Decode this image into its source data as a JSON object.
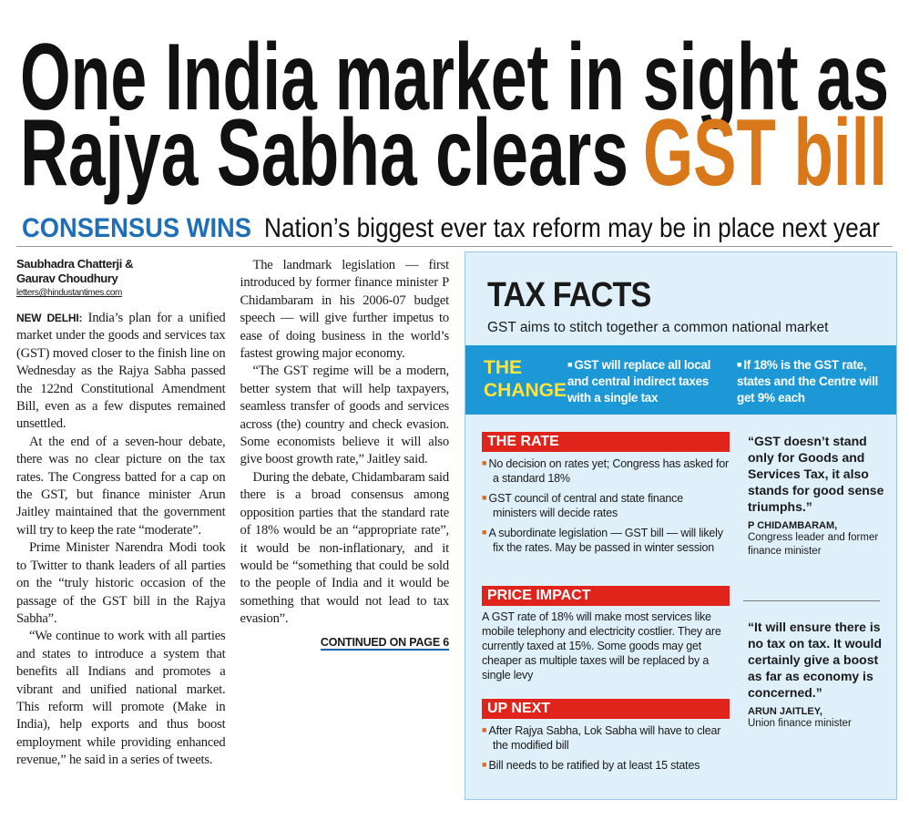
{
  "headline": {
    "line1": "One India market in sight as",
    "line2": "Rajya Sabha clears",
    "highlight": "GST bill"
  },
  "subhead": {
    "label": "CONSENSUS WINS",
    "text": "Nation’s biggest ever tax reform may be in place next year"
  },
  "byline": {
    "authors": [
      "Saubhadra Chatterji &",
      "Gaurav Choudhury"
    ],
    "email": "letters@hindustantimes.com"
  },
  "article": {
    "dateline": "NEW DELHI:",
    "paragraphs": [
      "India’s plan for a unified market under the goods and services tax (GST) moved closer to the finish line on Wednesday as the Rajya Sabha passed the 122nd Constitutional Amendment Bill, even as a few disputes remained unsettled.",
      "At the end of a seven-hour debate, there was no clear picture on the tax rates. The Congress batted for a cap on the GST, but finance minister Arun Jaitley maintained that the government will try to keep the rate “moderate”.",
      "Prime Minister Narendra Modi took to Twitter to thank leaders of all parties on the “truly historic occasion of the passage of the GST bill in the Rajya Sabha”.",
      "“We continue to work with all parties and states to introduce a system that benefits all Indians and promotes a vibrant and unified national market. This reform will promote (Make in India), help exports and thus boost employment while providing enhanced revenue,” he said in a series of tweets.",
      "The landmark legislation — first introduced by former finance minister P Chidambaram in his 2006-07 budget speech — will give further impetus to ease of doing business in the world’s fastest growing major economy.",
      "“The GST regime will be a modern, better system that will help taxpayers, seamless transfer of goods and services across (the) country and check evasion. Some economists believe it will also give boost growth rate,” Jaitley said.",
      "During the debate, Chidambaram said there is a broad consensus among opposition parties that the standard rate of 18% would be an “appropriate rate”, it would be non-inflationary, and it would be “something that could be sold to the people of India and it would be something that would not lead to tax evasion”."
    ],
    "continued": "CONTINUED ON PAGE 6"
  },
  "box": {
    "title": "TAX FACTS",
    "subtitle": "GST aims to stitch together a common national market",
    "change": {
      "label": "THE CHANGE",
      "points": [
        "GST will replace all local and central indirect taxes with a single tax",
        "If 18% is the GST rate, states and the Centre will get 9% each"
      ]
    },
    "rate": {
      "heading": "THE RATE",
      "points": [
        "No decision on rates yet; Congress has asked for a standard 18%",
        "GST council of central and state finance ministers will decide rates",
        "A subordinate legislation — GST bill — will likely fix the rates. May be passed in winter session"
      ]
    },
    "impact": {
      "heading": "PRICE IMPACT",
      "text": "A GST rate of 18% will make most services like mobile telephony and electricity costlier. They are currently taxed at 15%. Some goods may get cheaper as multiple taxes will be replaced by a single levy"
    },
    "next": {
      "heading": "UP NEXT",
      "points": [
        "After Rajya Sabha, Lok Sabha will have to clear the modified bill",
        "Bill needs to be ratified by at least 15 states"
      ]
    },
    "quotes": [
      {
        "text": "“GST doesn’t stand only for Goods and Services Tax, it also stands for good sense triumphs.”",
        "name": "P CHIDAMBARAM,",
        "role": "Congress leader and former finance minister"
      },
      {
        "text": "“It will ensure there is no tax on tax. It would certainly give a boost as far as economy is concerned.”",
        "name": "ARUN JAITLEY,",
        "role": "Union finance minister"
      }
    ]
  }
}
